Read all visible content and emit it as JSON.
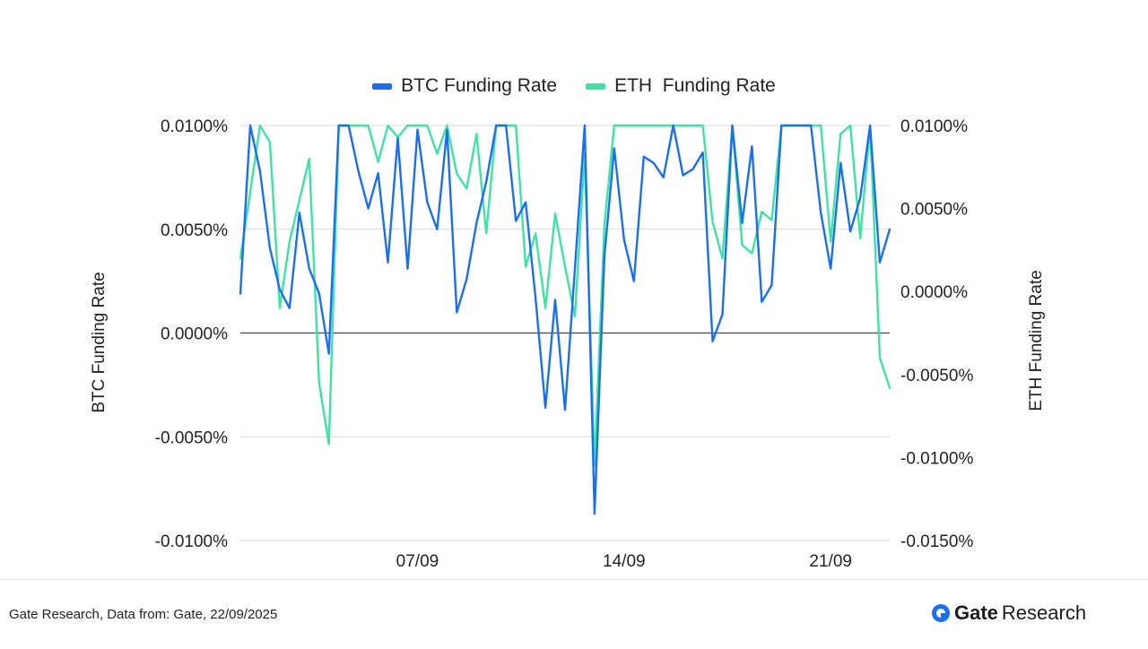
{
  "chart_data": {
    "type": "line",
    "title": "",
    "legend": [
      "BTC Funding Rate",
      "ETH  Funding Rate"
    ],
    "legend_position": "top-center",
    "colors": {
      "btc": "#1a6ef0",
      "eth": "#3ee3a3",
      "zero_line": "#444444",
      "grid": "#d9d9d9"
    },
    "grid": true,
    "x_tick_labels": [
      "07/09",
      "14/09",
      "21/09"
    ],
    "x": [
      0,
      1,
      2,
      3,
      4,
      5,
      6,
      7,
      8,
      9,
      10,
      11,
      12,
      13,
      14,
      15,
      16,
      17,
      18,
      19,
      20,
      21,
      22,
      23,
      24,
      25,
      26,
      27,
      28,
      29,
      30,
      31,
      32,
      33,
      34,
      35,
      36,
      37,
      38,
      39,
      40,
      41,
      42,
      43,
      44,
      45,
      46,
      47,
      48,
      49,
      50,
      51,
      52,
      53,
      54,
      55,
      56,
      57,
      58,
      59,
      60,
      61,
      62,
      63,
      64,
      65,
      66
    ],
    "x_ticks_at": [
      18,
      39,
      60
    ],
    "y_left": {
      "label": "BTC  Funding Rate",
      "range": [
        -0.01,
        0.01
      ],
      "ticks": [
        -0.01,
        -0.005,
        0.0,
        0.005,
        0.01
      ],
      "tick_labels": [
        "-0.0100%",
        "-0.0050%",
        "0.0000%",
        "0.0050%",
        "0.0100%"
      ]
    },
    "y_right": {
      "label": "ETH Funding Rate",
      "range": [
        -0.015,
        0.01
      ],
      "ticks": [
        -0.015,
        -0.01,
        -0.005,
        0.0,
        0.005,
        0.01
      ],
      "tick_labels": [
        "-0.0150%",
        "-0.0100%",
        "-0.0050%",
        "0.0000%",
        "0.0050%",
        "0.0100%"
      ]
    },
    "series": [
      {
        "name": "BTC Funding Rate",
        "axis": "left",
        "values": [
          0.0019,
          0.01,
          0.0078,
          0.0041,
          0.0021,
          0.0012,
          0.0058,
          0.0031,
          0.0019,
          -0.001,
          0.01,
          0.01,
          0.0078,
          0.006,
          0.0077,
          0.0034,
          0.0094,
          0.0031,
          0.0098,
          0.0063,
          0.005,
          0.0098,
          0.001,
          0.0026,
          0.0053,
          0.0073,
          0.01,
          0.01,
          0.0054,
          0.0063,
          0.0017,
          -0.0036,
          0.0016,
          -0.0037,
          0.0031,
          0.01,
          -0.0087,
          0.0037,
          0.0089,
          0.0045,
          0.0025,
          0.0085,
          0.0082,
          0.0075,
          0.01,
          0.0076,
          0.0079,
          0.0087,
          -0.0004,
          0.0009,
          0.01,
          0.0053,
          0.009,
          0.0015,
          0.0023,
          0.01,
          0.01,
          0.01,
          0.01,
          0.0058,
          0.0031,
          0.0082,
          0.0049,
          0.0065,
          0.01,
          0.0034,
          0.005
        ]
      },
      {
        "name": "ETH  Funding Rate",
        "axis": "right",
        "values": [
          0.002,
          0.006,
          0.01,
          0.009,
          -0.001,
          0.003,
          0.0055,
          0.008,
          -0.0055,
          -0.0092,
          0.01,
          0.01,
          0.01,
          0.01,
          0.0078,
          0.01,
          0.0093,
          0.01,
          0.01,
          0.01,
          0.0083,
          0.01,
          0.0071,
          0.0062,
          0.0095,
          0.0035,
          0.01,
          0.01,
          0.01,
          0.0015,
          0.0035,
          -0.001,
          0.0047,
          0.0015,
          -0.0015,
          0.0083,
          -0.0105,
          0.004,
          0.01,
          0.01,
          0.01,
          0.01,
          0.01,
          0.01,
          0.01,
          0.01,
          0.01,
          0.01,
          0.0042,
          0.002,
          0.01,
          0.0028,
          0.0023,
          0.0048,
          0.0043,
          0.01,
          0.01,
          0.01,
          0.01,
          0.01,
          0.003,
          0.0095,
          0.01,
          0.0032,
          0.01,
          -0.004,
          -0.0058
        ]
      }
    ]
  },
  "footer": {
    "source": "Gate Research, Data from: Gate, 22/09/2025",
    "brand_main": "Gate",
    "brand_sub": "Research"
  }
}
